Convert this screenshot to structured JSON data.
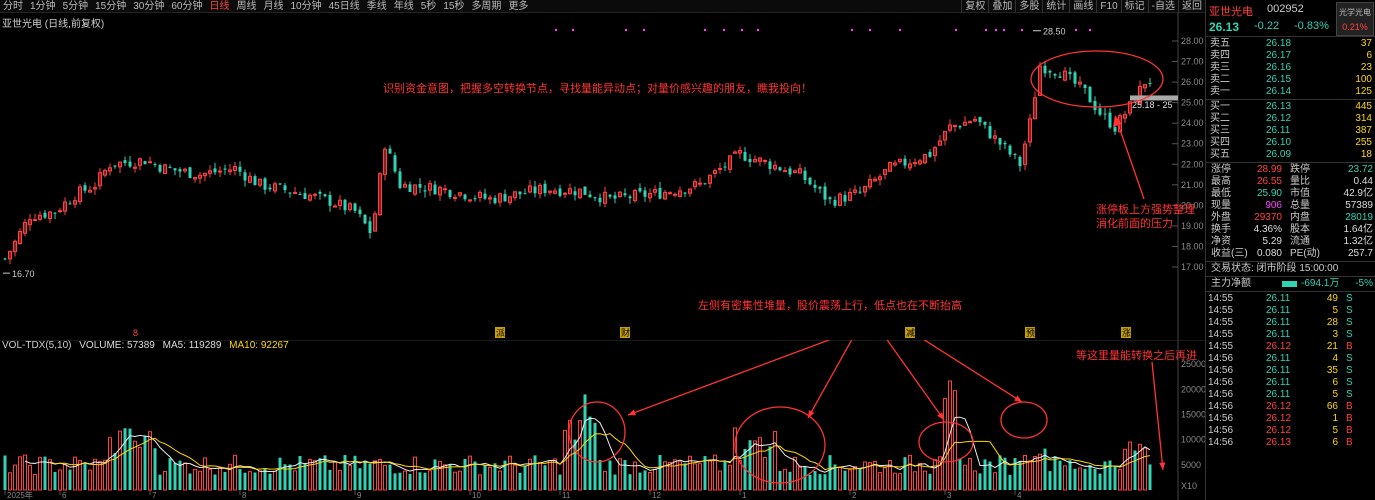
{
  "toolbar": {
    "periods": [
      "分时",
      "1分钟",
      "5分钟",
      "15分钟",
      "30分钟",
      "60分钟",
      "日线",
      "周线",
      "月线",
      "10分钟",
      "45日线",
      "季线",
      "年线",
      "5秒",
      "15秒",
      "多周期",
      "更多"
    ],
    "active": "日线",
    "right": [
      "复权",
      "叠加",
      "多股",
      "统计",
      "画线",
      "F10",
      "标记",
      "-自选",
      "返回"
    ]
  },
  "chart": {
    "title": "亚世光电 (日线,前复权)",
    "price_axis": [
      "28.00",
      "27.00",
      "26.00",
      "25.00",
      "24.00",
      "23.00",
      "22.00",
      "21.00",
      "20.00",
      "19.00",
      "18.00",
      "17.00"
    ],
    "high_label": "28.50",
    "low_label": "16.70",
    "range_label": "25.18 - 25",
    "event_markers": [
      "8",
      "派",
      "财",
      "减",
      "预",
      "涨"
    ],
    "annotations": {
      "top": "识别资金意图，把握多空转换节点，寻找量能异动点；对量价感兴趣的朋友，瞧我投向！",
      "consolidation_1": "涨停板上方强势整理",
      "consolidation_2": "消化前面的压力",
      "left_volume": "左侧有密集性堆量，股价震荡上行，低点也在不断抬高",
      "wait": "等这里量能转换之后再进"
    }
  },
  "volume": {
    "legend_name": "VOL-TDX(5,10)",
    "legend_volume": "VOLUME: 57389",
    "legend_ma5": "MA5: 119289",
    "legend_ma10": "MA10: 92267",
    "axis": [
      "25000",
      "20000",
      "15000",
      "10000",
      "5000",
      "X10"
    ],
    "date_labels": [
      "2025年",
      "6",
      "7",
      "8",
      "9",
      "10",
      "11",
      "12",
      "1",
      "2",
      "3",
      "4"
    ]
  },
  "panel": {
    "name": "亚世光电",
    "code": "002952",
    "sector": "光学光电",
    "sector_change": "0.21%",
    "price": "26.13",
    "change": "-0.22",
    "change_pct": "-0.83%",
    "asks": [
      {
        "label": "卖五",
        "price": "26.18",
        "vol": "37"
      },
      {
        "label": "卖四",
        "price": "26.17",
        "vol": "6"
      },
      {
        "label": "卖三",
        "price": "26.16",
        "vol": "23"
      },
      {
        "label": "卖二",
        "price": "26.15",
        "vol": "100"
      },
      {
        "label": "卖一",
        "price": "26.14",
        "vol": "125"
      }
    ],
    "bids": [
      {
        "label": "买一",
        "price": "26.13",
        "vol": "445"
      },
      {
        "label": "买二",
        "price": "26.12",
        "vol": "314"
      },
      {
        "label": "买三",
        "price": "26.11",
        "vol": "387"
      },
      {
        "label": "买四",
        "price": "26.10",
        "vol": "255"
      },
      {
        "label": "买五",
        "price": "26.09",
        "vol": "18"
      }
    ],
    "stats": [
      {
        "l1": "涨停",
        "v1": "28.99",
        "l2": "跌停",
        "v2": "23.72"
      },
      {
        "l1": "最高",
        "v1": "26.55",
        "l2": "量比",
        "v2": "0.44"
      },
      {
        "l1": "最低",
        "v1": "25.90",
        "l2": "市值",
        "v2": "42.9亿"
      },
      {
        "l1": "现量",
        "v1": "906",
        "l2": "总量",
        "v2": "57389"
      },
      {
        "l1": "外盘",
        "v1": "29370",
        "l2": "内盘",
        "v2": "28019"
      },
      {
        "l1": "换手",
        "v1": "4.36%",
        "l2": "股本",
        "v2": "1.64亿"
      },
      {
        "l1": "净资",
        "v1": "5.29",
        "l2": "流通",
        "v2": "1.32亿"
      },
      {
        "l1": "收益(三)",
        "v1": "0.080",
        "l2": "PE(动)",
        "v2": "257.7"
      }
    ],
    "status": "交易状态: 闭市阶段 15:00:00",
    "main_flow_label": "主力净额",
    "main_flow_value": "-694.1万",
    "main_flow_pct": "-5%",
    "ticks": [
      {
        "t": "14:55",
        "p": "26.11",
        "v": "49",
        "s": "S"
      },
      {
        "t": "14:55",
        "p": "26.11",
        "v": "5",
        "s": "S"
      },
      {
        "t": "14:55",
        "p": "26.11",
        "v": "28",
        "s": "S"
      },
      {
        "t": "14:55",
        "p": "26.11",
        "v": "3",
        "s": "S"
      },
      {
        "t": "14:55",
        "p": "26.12",
        "v": "21",
        "s": "B"
      },
      {
        "t": "14:56",
        "p": "26.11",
        "v": "4",
        "s": "S"
      },
      {
        "t": "14:56",
        "p": "26.11",
        "v": "35",
        "s": "S"
      },
      {
        "t": "14:56",
        "p": "26.11",
        "v": "6",
        "s": "S"
      },
      {
        "t": "14:56",
        "p": "26.11",
        "v": "5",
        "s": "S"
      },
      {
        "t": "14:56",
        "p": "26.12",
        "v": "66",
        "s": "B"
      },
      {
        "t": "14:56",
        "p": "26.12",
        "v": "1",
        "s": "B"
      },
      {
        "t": "14:56",
        "p": "26.12",
        "v": "5",
        "s": "B"
      },
      {
        "t": "14:56",
        "p": "26.13",
        "v": "6",
        "s": "B"
      }
    ],
    "colors": {
      "up": "#ff4040",
      "down": "#32d2b4",
      "neutral": "#ffd700"
    }
  }
}
